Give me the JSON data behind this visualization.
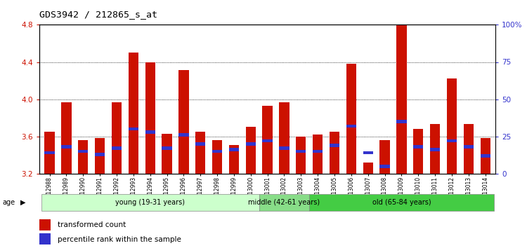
{
  "title": "GDS3942 / 212865_s_at",
  "categories": [
    "GSM812988",
    "GSM812989",
    "GSM812990",
    "GSM812991",
    "GSM812992",
    "GSM812993",
    "GSM812994",
    "GSM812995",
    "GSM812996",
    "GSM812997",
    "GSM812998",
    "GSM812999",
    "GSM813000",
    "GSM813001",
    "GSM813002",
    "GSM813003",
    "GSM813004",
    "GSM813005",
    "GSM813006",
    "GSM813007",
    "GSM813008",
    "GSM813009",
    "GSM813010",
    "GSM813011",
    "GSM813012",
    "GSM813013",
    "GSM813014"
  ],
  "transformed_count": [
    3.65,
    3.97,
    3.56,
    3.58,
    3.97,
    4.5,
    4.4,
    3.63,
    4.31,
    3.65,
    3.56,
    3.51,
    3.7,
    3.93,
    3.97,
    3.6,
    3.62,
    3.65,
    4.38,
    3.32,
    3.56,
    4.8,
    3.68,
    3.73,
    4.22,
    3.73,
    3.58
  ],
  "percentile_rank": [
    14,
    18,
    15,
    13,
    17,
    30,
    28,
    17,
    26,
    20,
    15,
    16,
    20,
    22,
    17,
    15,
    15,
    19,
    32,
    14,
    5,
    35,
    18,
    16,
    22,
    18,
    12
  ],
  "bar_color": "#cc1100",
  "blue_color": "#3333cc",
  "ylim": [
    3.2,
    4.8
  ],
  "y2lim": [
    0,
    100
  ],
  "yticks": [
    3.2,
    3.6,
    4.0,
    4.4,
    4.8
  ],
  "y2ticks": [
    0,
    25,
    50,
    75,
    100
  ],
  "y2ticklabels": [
    "0",
    "25",
    "50",
    "75",
    "100%"
  ],
  "age_groups": [
    {
      "label": "young (19-31 years)",
      "start": 0,
      "end": 13,
      "color": "#ccffcc"
    },
    {
      "label": "middle (42-61 years)",
      "start": 13,
      "end": 16,
      "color": "#88dd88"
    },
    {
      "label": "old (65-84 years)",
      "start": 16,
      "end": 27,
      "color": "#44cc44"
    }
  ],
  "bar_width": 0.6,
  "base_value": 3.2,
  "blue_bar_height": 0.035
}
